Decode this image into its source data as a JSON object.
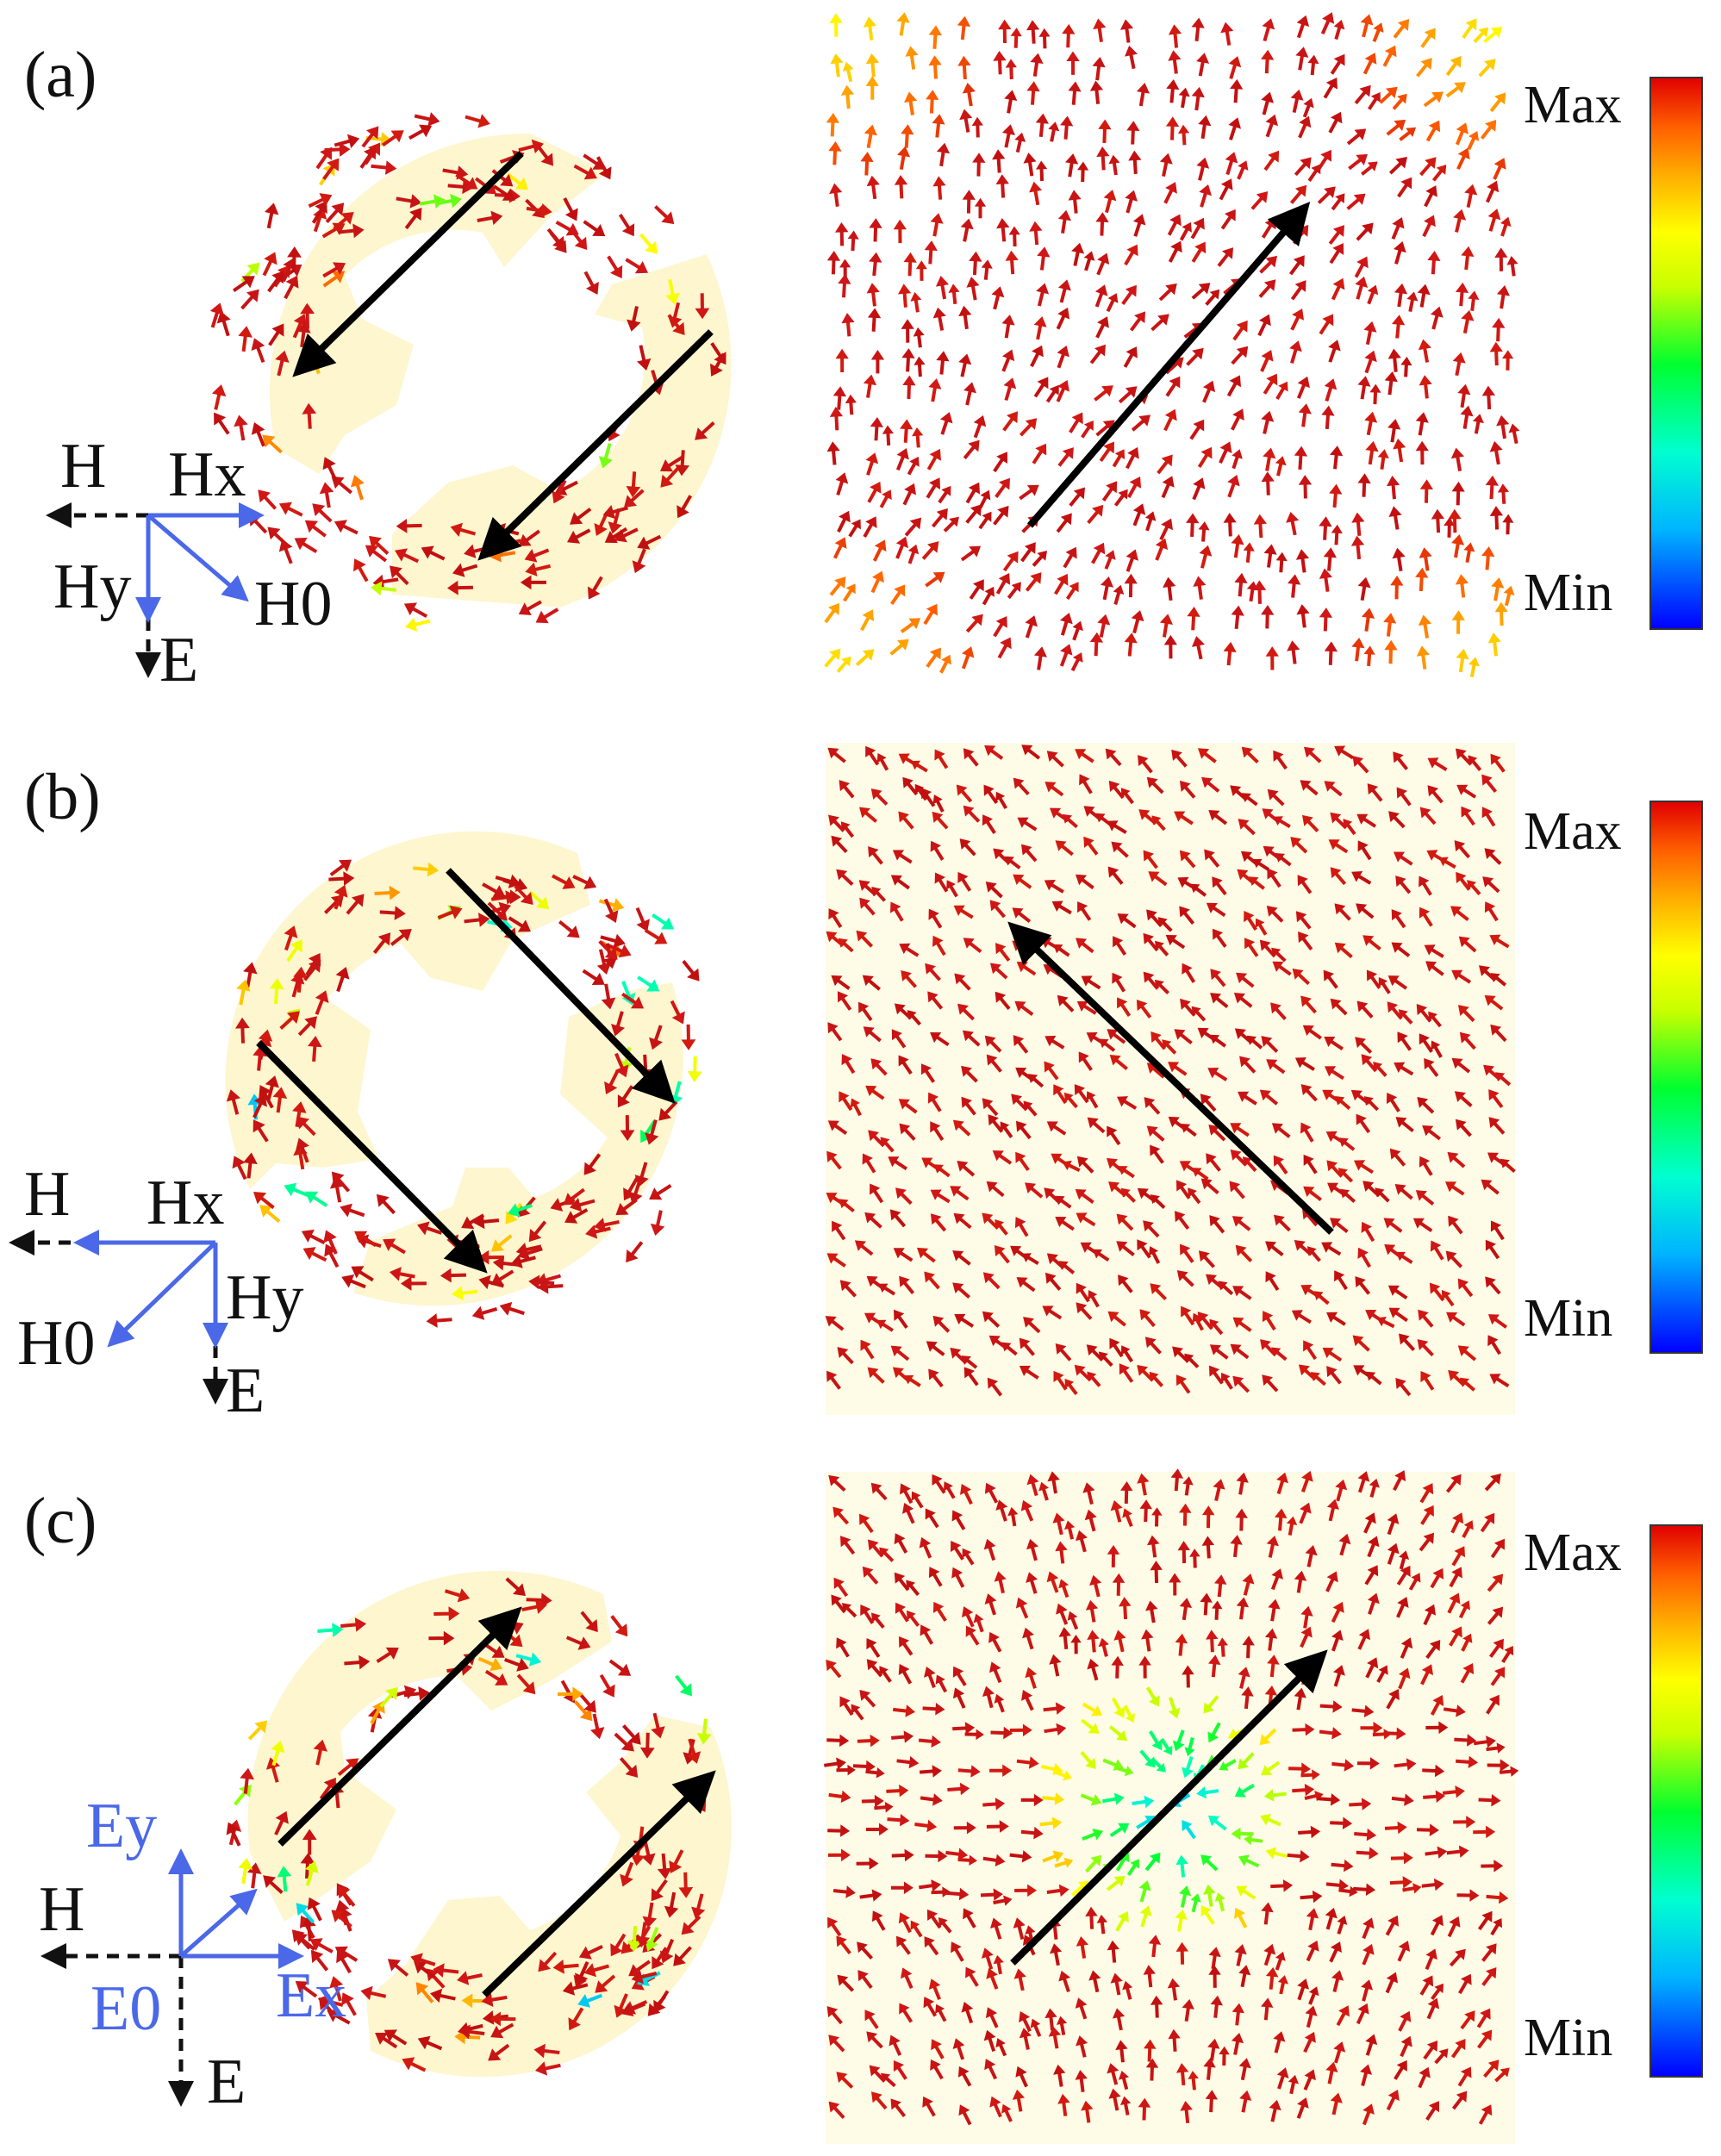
{
  "colors": {
    "background": "#ffffff",
    "structure_fill": "#fdf6cf",
    "field_bg": "#fefbe6",
    "arrow_max": "#c81414",
    "field_arrow_black": "#000000",
    "axis_blue": "#4a68e8",
    "colorbar": [
      "#0000ff",
      "#00b4ff",
      "#00ffd0",
      "#00ff30",
      "#c8ff00",
      "#ffff00",
      "#ffb000",
      "#ff6000",
      "#e00000"
    ]
  },
  "panels": [
    {
      "id": "a",
      "label": "(a)",
      "axes": {
        "H": "H",
        "Hx": "Hx",
        "Hy": "Hy",
        "H0": "H0",
        "E": "E"
      },
      "colorbar": {
        "max": "Max",
        "min": "Min"
      }
    },
    {
      "id": "b",
      "label": "(b)",
      "axes": {
        "H": "H",
        "Hx": "Hx",
        "Hy": "Hy",
        "H0": "H0",
        "E": "E"
      },
      "colorbar": {
        "max": "Max",
        "min": "Min"
      }
    },
    {
      "id": "c",
      "label": "(c)",
      "axes": {
        "Ey": "Ey",
        "H": "H",
        "E0": "E0",
        "Ex": "Ex",
        "E": "E"
      },
      "colorbar": {
        "max": "Max",
        "min": "Min"
      }
    }
  ]
}
